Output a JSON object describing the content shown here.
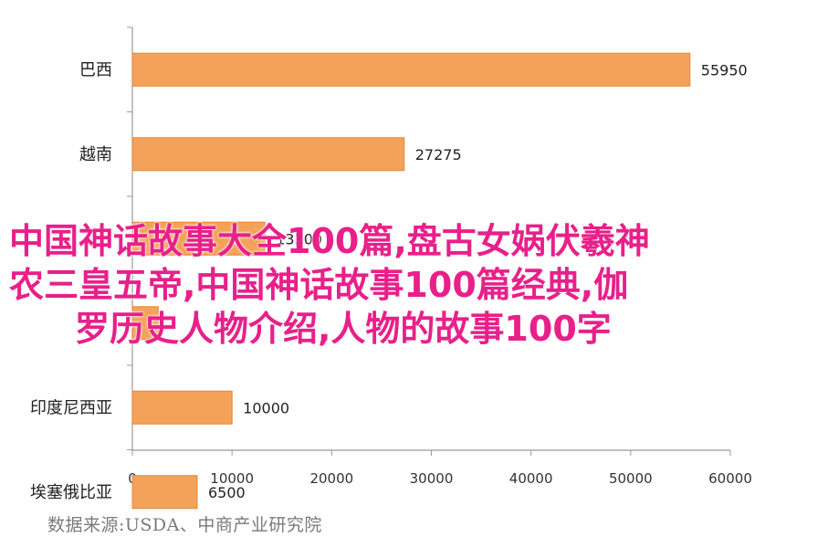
{
  "chart_data": {
    "type": "bar",
    "orientation": "horizontal",
    "categories": [
      "巴西",
      "越南",
      "",
      "",
      "印度尼西亚",
      "埃塞俄比亚"
    ],
    "values": [
      55950,
      27275,
      13300,
      2600,
      10000,
      6500
    ],
    "data_labels": [
      "55950",
      "27275",
      "13300",
      "",
      "10000",
      "6500"
    ],
    "xlim": [
      0,
      60000
    ],
    "x_ticks": [
      "0",
      "10000",
      "20000",
      "30000",
      "40000",
      "50000",
      "60000"
    ],
    "bar_color": "#f4a259",
    "bar_edge_color": "#e8863a",
    "grid": false
  },
  "overlay_text": {
    "line1": "中国神话故事大全100篇,盘古女娲伏羲神",
    "line2": "农三皇五帝,中国神话故事100篇经典,伽",
    "line3": "罗历史人物介绍,人物的故事100字"
  },
  "source_note": "数据来源:USDA、中商产业研究院"
}
